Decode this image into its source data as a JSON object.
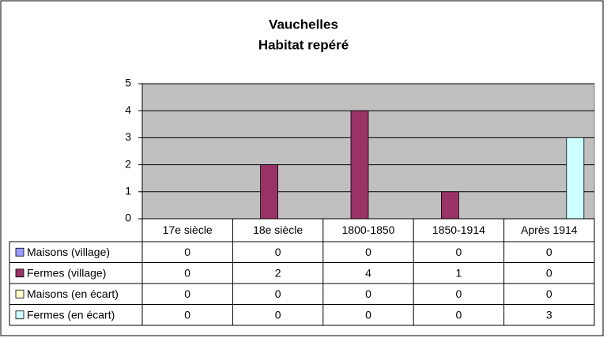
{
  "chart_data": {
    "type": "bar",
    "title": "Vauchelles",
    "subtitle": "Habitat repéré",
    "categories": [
      "17e siècle",
      "18e siècle",
      "1800-1850",
      "1850-1914",
      "Après 1914"
    ],
    "series": [
      {
        "name": "Maisons (village)",
        "color": "#9999ff",
        "values": [
          0,
          0,
          0,
          0,
          0
        ]
      },
      {
        "name": "Fermes (village)",
        "color": "#993366",
        "values": [
          0,
          2,
          4,
          1,
          0
        ]
      },
      {
        "name": "Maisons (en écart)",
        "color": "#ffffcc",
        "values": [
          0,
          0,
          0,
          0,
          0
        ]
      },
      {
        "name": "Fermes (en écart)",
        "color": "#ccffff",
        "values": [
          0,
          0,
          0,
          0,
          3
        ]
      }
    ],
    "ylim": [
      0,
      5
    ],
    "yticks": [
      0,
      1,
      2,
      3,
      4,
      5
    ],
    "grid": true,
    "plot_color": "#c0c0c0"
  }
}
